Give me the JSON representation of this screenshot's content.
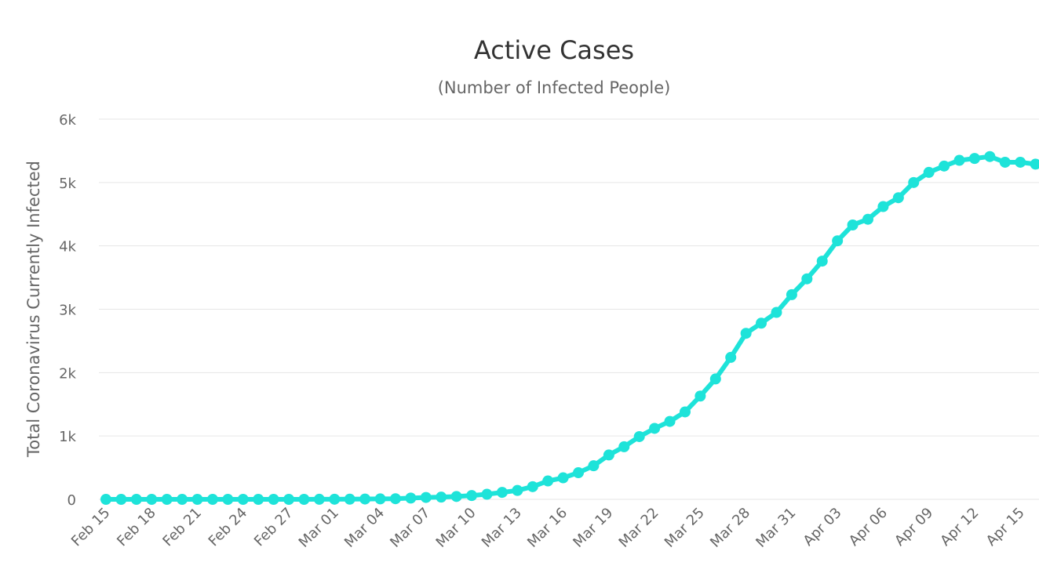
{
  "chart_data": {
    "type": "line",
    "title": "Active Cases",
    "subtitle": "(Number of Infected People)",
    "y_label": "Total Coronavirus Currently Infected",
    "categories": [
      "Feb 15",
      null,
      null,
      "Feb 18",
      null,
      null,
      "Feb 21",
      null,
      null,
      "Feb 24",
      null,
      null,
      "Feb 27",
      null,
      null,
      "Mar 01",
      null,
      null,
      "Mar 04",
      null,
      null,
      "Mar 07",
      null,
      null,
      "Mar 10",
      null,
      null,
      "Mar 13",
      null,
      null,
      "Mar 16",
      null,
      null,
      "Mar 19",
      null,
      null,
      "Mar 22",
      null,
      null,
      "Mar 25",
      null,
      null,
      "Mar 28",
      null,
      null,
      "Mar 31",
      null,
      null,
      "Apr 03",
      null,
      null,
      "Apr 06",
      null,
      null,
      "Apr 09",
      null,
      null,
      "Apr 12",
      null,
      null,
      "Apr 15",
      null
    ],
    "values": [
      0,
      0,
      0,
      0,
      0,
      0,
      0,
      0,
      0,
      0,
      0,
      0,
      0,
      0,
      1,
      2,
      3,
      5,
      7,
      10,
      20,
      30,
      35,
      45,
      60,
      80,
      110,
      140,
      200,
      290,
      340,
      420,
      530,
      700,
      830,
      990,
      1120,
      1230,
      1380,
      1630,
      1900,
      2240,
      2620,
      2780,
      2950,
      3230,
      3480,
      3760,
      4080,
      4330,
      4420,
      4620,
      4760,
      5000,
      5160,
      5260,
      5350,
      5380,
      5410,
      5320,
      5320,
      5290
    ],
    "color": "#1ee3d9",
    "ylim": [
      0,
      6000
    ],
    "yticks": [
      0,
      {
        "value": 1000,
        "label": "1k"
      },
      {
        "value": 2000,
        "label": "2k"
      },
      {
        "value": 3000,
        "label": "3k"
      },
      {
        "value": 4000,
        "label": "4k"
      },
      {
        "value": 5000,
        "label": "5k"
      },
      {
        "value": 6000,
        "label": "6k"
      }
    ],
    "grid": true
  }
}
